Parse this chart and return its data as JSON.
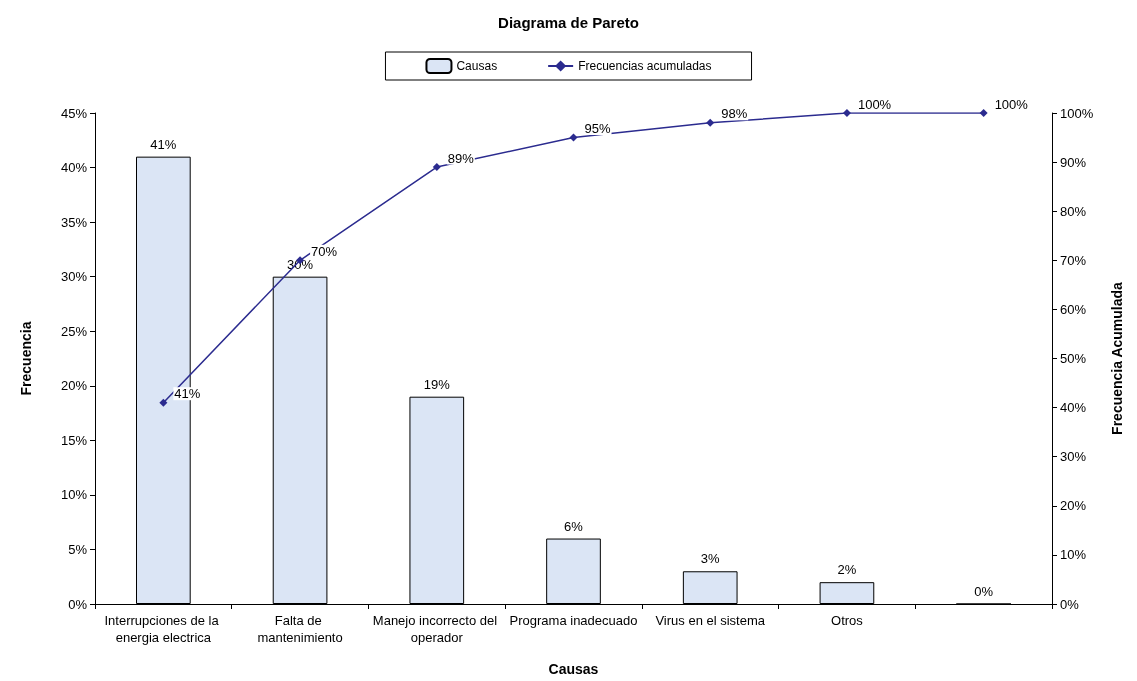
{
  "chart_data": {
    "type": "bar",
    "title": "Diagrama de Pareto",
    "xlabel": "Causas",
    "ylabel": "Frecuencia",
    "y2label": "Frecuencia Acumulada",
    "categories": [
      "Interrupciones de la energia electrica",
      "Falta de mantenimiento",
      "Manejo incorrecto del operador",
      "Programa inadecuado",
      "Virus en el sistema",
      "Otros",
      null
    ],
    "series": [
      {
        "name": "Causas",
        "color": "#dbe5f5",
        "values": [
          41,
          30,
          19,
          6,
          3,
          2,
          0
        ],
        "value_labels": [
          "41%",
          "30%",
          "19%",
          "6%",
          "3%",
          "2%",
          "0%"
        ]
      },
      {
        "name": "Frecuencias acumuladas",
        "type": "line",
        "axis": "y2",
        "color": "#2b2b8f",
        "marker": "diamond",
        "values": [
          41,
          70,
          89,
          95,
          98,
          100,
          100
        ],
        "value_labels": [
          "41%",
          "70%",
          "89%",
          "95%",
          "98%",
          "100%",
          "100%"
        ]
      }
    ],
    "ylim": [
      0,
      45
    ],
    "yticks": [
      {
        "value": 0,
        "label": "0%"
      },
      {
        "value": 5,
        "label": "5%"
      },
      {
        "value": 10,
        "label": "10%"
      },
      {
        "value": 15,
        "label": "15%"
      },
      {
        "value": 20,
        "label": "20%"
      },
      {
        "value": 25,
        "label": "25%"
      },
      {
        "value": 30,
        "label": "30%"
      },
      {
        "value": 35,
        "label": "35%"
      },
      {
        "value": 40,
        "label": "40%"
      },
      {
        "value": 45,
        "label": "45%"
      }
    ],
    "y2lim": [
      0,
      100
    ],
    "y2ticks": [
      {
        "value": 0,
        "label": "0%"
      },
      {
        "value": 10,
        "label": "10%"
      },
      {
        "value": 20,
        "label": "20%"
      },
      {
        "value": 30,
        "label": "30%"
      },
      {
        "value": 40,
        "label": "40%"
      },
      {
        "value": 50,
        "label": "50%"
      },
      {
        "value": 60,
        "label": "60%"
      },
      {
        "value": 70,
        "label": "70%"
      },
      {
        "value": 80,
        "label": "80%"
      },
      {
        "value": 90,
        "label": "90%"
      },
      {
        "value": 100,
        "label": "100%"
      }
    ],
    "grid": false,
    "legend": "top"
  }
}
